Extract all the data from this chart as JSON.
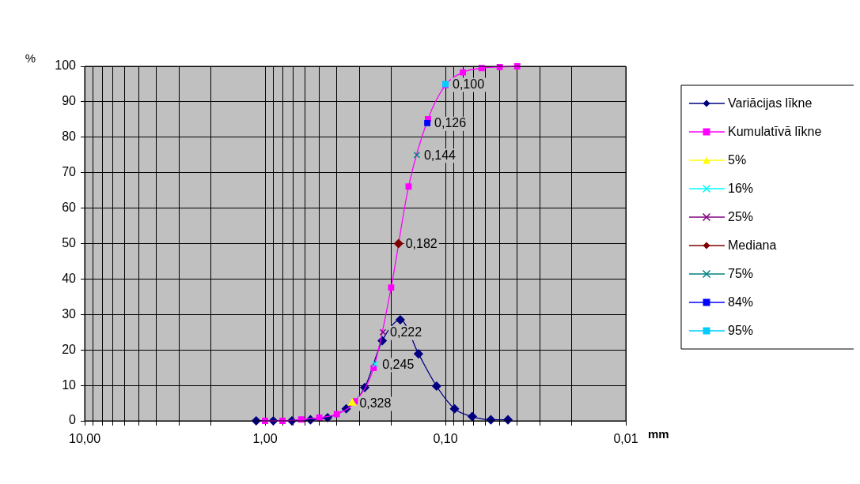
{
  "chart_data": {
    "type": "line",
    "xlabel": "mm",
    "ylabel": "%",
    "legend": "right",
    "grid": true,
    "log": "x",
    "annotations": [
      {
        "text": "0,328",
        "x": 0.328,
        "y": 5
      },
      {
        "text": "0,245",
        "x": 0.245,
        "y": 16
      },
      {
        "text": "0,222",
        "x": 0.222,
        "y": 25
      },
      {
        "text": "0,182",
        "x": 0.182,
        "y": 50
      },
      {
        "text": "0,144",
        "x": 0.144,
        "y": 75
      },
      {
        "text": "0,126",
        "x": 0.126,
        "y": 84
      },
      {
        "text": "0,100",
        "x": 0.1,
        "y": 95
      }
    ],
    "xlim": [
      10,
      0.01
    ],
    "ylim": [
      0,
      100
    ],
    "xticks": [
      {
        "value": 10,
        "label": "10,00"
      },
      {
        "value": 9,
        "label": null
      },
      {
        "value": 8,
        "label": null
      },
      {
        "value": 7,
        "label": null
      },
      {
        "value": 6,
        "label": null
      },
      {
        "value": 5,
        "label": null
      },
      {
        "value": 4,
        "label": null
      },
      {
        "value": 3,
        "label": null
      },
      {
        "value": 2,
        "label": null
      },
      {
        "value": 1,
        "label": "1,00"
      },
      {
        "value": 0.9,
        "label": null
      },
      {
        "value": 0.8,
        "label": null
      },
      {
        "value": 0.7,
        "label": null
      },
      {
        "value": 0.6,
        "label": null
      },
      {
        "value": 0.5,
        "label": null
      },
      {
        "value": 0.4,
        "label": null
      },
      {
        "value": 0.3,
        "label": null
      },
      {
        "value": 0.2,
        "label": null
      },
      {
        "value": 0.1,
        "label": "0,10"
      },
      {
        "value": 0.09,
        "label": null
      },
      {
        "value": 0.08,
        "label": null
      },
      {
        "value": 0.07,
        "label": null
      },
      {
        "value": 0.06,
        "label": null
      },
      {
        "value": 0.05,
        "label": null
      },
      {
        "value": 0.04,
        "label": null
      },
      {
        "value": 0.03,
        "label": null
      },
      {
        "value": 0.02,
        "label": null
      },
      {
        "value": 0.01,
        "label": "0,01"
      }
    ],
    "yticks": [
      0,
      10,
      20,
      30,
      40,
      50,
      60,
      70,
      80,
      90,
      100
    ],
    "series": [
      {
        "name": "Variācijas līkne",
        "color": "#000080",
        "marker": "diamond",
        "x": [
          1.12,
          0.9,
          0.71,
          0.56,
          0.45,
          0.355,
          0.28,
          0.224,
          0.178,
          0.141,
          0.112,
          0.089,
          0.071,
          0.056,
          0.045
        ],
        "values": [
          0,
          0,
          0,
          0.3,
          0.9,
          3.4,
          9.4,
          22.6,
          28.5,
          18.9,
          9.8,
          3.4,
          1.2,
          0.3,
          0.3
        ]
      },
      {
        "name": "Kumulatīvā līkne",
        "color": "#ff00ff",
        "marker": "square",
        "x": [
          1.0,
          0.8,
          0.63,
          0.5,
          0.4,
          0.315,
          0.25,
          0.2,
          0.16,
          0.125,
          0.1,
          0.08,
          0.063,
          0.05,
          0.04
        ],
        "values": [
          0,
          0,
          0.4,
          0.9,
          1.9,
          5.5,
          14.9,
          37.6,
          66.1,
          85.1,
          94.7,
          98.3,
          99.5,
          99.8,
          100
        ]
      },
      {
        "name": "5%",
        "color": "#ffff00",
        "marker": "triangle",
        "x": [
          0.328
        ],
        "values": [
          5
        ]
      },
      {
        "name": "16%",
        "color": "#00ffff",
        "marker": "cross",
        "x": [
          0.245
        ],
        "values": [
          16
        ]
      },
      {
        "name": "25%",
        "color": "#800080",
        "marker": "cross",
        "x": [
          0.222
        ],
        "values": [
          25
        ]
      },
      {
        "name": "Mediana",
        "color": "#800000",
        "marker": "diamond",
        "x": [
          0.182
        ],
        "values": [
          50
        ]
      },
      {
        "name": "75%",
        "color": "#008080",
        "marker": "cross",
        "x": [
          0.144
        ],
        "values": [
          75
        ]
      },
      {
        "name": "84%",
        "color": "#0000ff",
        "marker": "square",
        "x": [
          0.126
        ],
        "values": [
          84
        ]
      },
      {
        "name": "95%",
        "color": "#00ccff",
        "marker": "square",
        "x": [
          0.1
        ],
        "values": [
          95
        ]
      }
    ]
  }
}
